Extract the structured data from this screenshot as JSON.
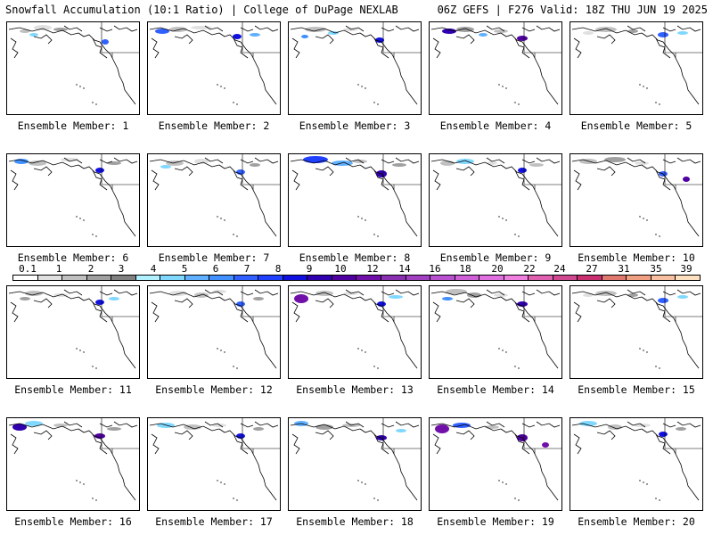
{
  "header": {
    "title_left": "Snowfall Accumulation (10:1 Ratio) | College of DuPage NEXLAB",
    "title_right": "06Z GEFS | F276 Valid: 18Z THU JUN 19 2025"
  },
  "panels": [
    {
      "label": "Ensemble Member: 1",
      "member": 1
    },
    {
      "label": "Ensemble Member: 2",
      "member": 2
    },
    {
      "label": "Ensemble Member: 3",
      "member": 3
    },
    {
      "label": "Ensemble Member: 4",
      "member": 4
    },
    {
      "label": "Ensemble Member: 5",
      "member": 5
    },
    {
      "label": "Ensemble Member: 6",
      "member": 6
    },
    {
      "label": "Ensemble Member: 7",
      "member": 7
    },
    {
      "label": "Ensemble Member: 8",
      "member": 8
    },
    {
      "label": "Ensemble Member: 9",
      "member": 9
    },
    {
      "label": "Ensemble Member: 10",
      "member": 10
    },
    {
      "label": "Ensemble Member: 11",
      "member": 11
    },
    {
      "label": "Ensemble Member: 12",
      "member": 12
    },
    {
      "label": "Ensemble Member: 13",
      "member": 13
    },
    {
      "label": "Ensemble Member: 14",
      "member": 14
    },
    {
      "label": "Ensemble Member: 15",
      "member": 15
    },
    {
      "label": "Ensemble Member: 16",
      "member": 16
    },
    {
      "label": "Ensemble Member: 17",
      "member": 17
    },
    {
      "label": "Ensemble Member: 18",
      "member": 18
    },
    {
      "label": "Ensemble Member: 19",
      "member": 19
    },
    {
      "label": "Ensemble Member: 20",
      "member": 20
    }
  ],
  "colorbar": {
    "labels": [
      "0.1",
      "1",
      "2",
      "3",
      "4",
      "5",
      "6",
      "7",
      "8",
      "9",
      "10",
      "12",
      "14",
      "16",
      "18",
      "20",
      "22",
      "24",
      "27",
      "31",
      "35",
      "39"
    ],
    "colors": [
      "#ffffff",
      "#e0e0e0",
      "#c0c0c0",
      "#a0a0a0",
      "#808080",
      "#b0f0ff",
      "#80d8ff",
      "#60b0ff",
      "#4090ff",
      "#3060ff",
      "#2040ff",
      "#1010e0",
      "#3000b0",
      "#5000a0",
      "#7010a8",
      "#8830b0",
      "#a040c0",
      "#b850d0",
      "#d060d8",
      "#e070e0",
      "#f080e0",
      "#e060b0",
      "#d04890",
      "#c83070",
      "#e07870",
      "#f0a080",
      "#f8c0a0",
      "#fce0c0"
    ]
  }
}
